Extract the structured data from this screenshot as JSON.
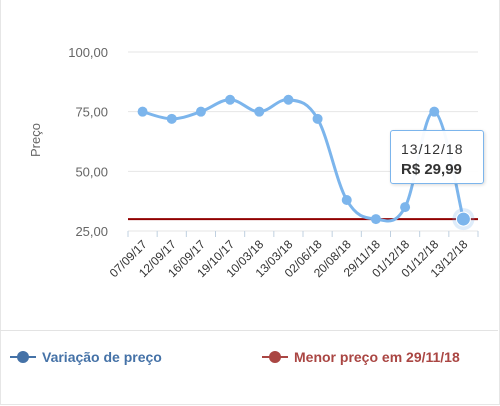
{
  "chart_data": {
    "type": "line",
    "title": "",
    "xlabel": "",
    "ylabel": "Preço",
    "ylim": [
      25,
      100
    ],
    "yticks": [
      "25,00",
      "50,00",
      "75,00",
      "100,00"
    ],
    "ytick_values": [
      25,
      50,
      75,
      100
    ],
    "categories": [
      "07/09/17",
      "12/09/17",
      "16/09/17",
      "19/10/17",
      "10/03/18",
      "13/03/18",
      "02/06/18",
      "20/08/18",
      "29/11/18",
      "01/12/18",
      "01/12/18",
      "13/12/18"
    ],
    "series": [
      {
        "name": "Variação de preço",
        "color": "#7cb5ec",
        "values": [
          75,
          72,
          75,
          80,
          75,
          80,
          72,
          38,
          30,
          35,
          75,
          30
        ]
      }
    ],
    "reference_line": {
      "name": "Menor preço em 29/11/18",
      "color": "#910000",
      "value": 30
    },
    "grid": true,
    "legend_position": "bottom"
  },
  "legend": {
    "series_label": "Variação de preço",
    "series_color": "#4572a7",
    "reference_label": "Menor preço em 29/11/18",
    "reference_color": "#aa4643"
  },
  "tooltip": {
    "date": "13/12/18",
    "price": "R$ 29,99"
  }
}
